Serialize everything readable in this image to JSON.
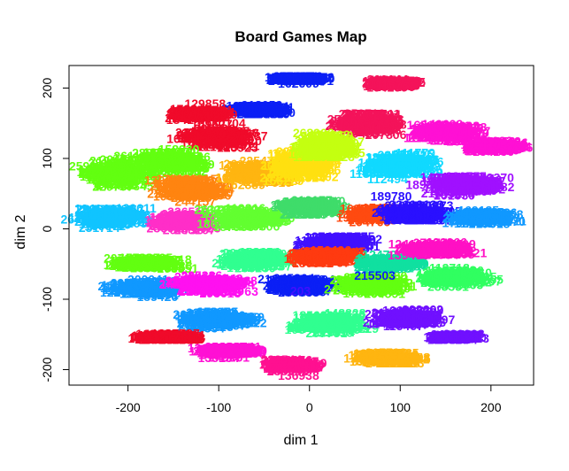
{
  "chart_data": {
    "type": "scatter",
    "title": "Board Games Map",
    "xlabel": "dim 1",
    "ylabel": "dim 2",
    "xlim": [
      -265,
      247
    ],
    "ylim": [
      -222,
      232
    ],
    "xticks": [
      -200,
      -100,
      0,
      100,
      200
    ],
    "yticks": [
      -200,
      -100,
      0,
      100,
      200
    ],
    "xtick_labels": [
      "-200",
      "-100",
      "0",
      "100",
      "200"
    ],
    "ytick_labels": [
      "-200",
      "-100",
      "0",
      "100",
      "200"
    ],
    "grid": false,
    "legend": "none",
    "point_style": "text labels (game ids) colored by cluster",
    "clusters": [
      {
        "color": "#0b1ff5",
        "center": [
          -10,
          212
        ],
        "spread": [
          22,
          5
        ]
      },
      {
        "color": "#0b1ff5",
        "center": [
          -55,
          168
        ],
        "spread": [
          22,
          8
        ]
      },
      {
        "color": "#f00a2a",
        "center": [
          -120,
          162
        ],
        "spread": [
          28,
          10
        ]
      },
      {
        "color": "#f00a2a",
        "center": [
          -100,
          130
        ],
        "spread": [
          40,
          22
        ]
      },
      {
        "color": "#f4135a",
        "center": [
          60,
          150
        ],
        "spread": [
          35,
          22
        ]
      },
      {
        "color": "#f4135a",
        "center": [
          90,
          205
        ],
        "spread": [
          20,
          8
        ]
      },
      {
        "color": "#ff10d4",
        "center": [
          150,
          135
        ],
        "spread": [
          40,
          18
        ]
      },
      {
        "color": "#ff10d4",
        "center": [
          205,
          115
        ],
        "spread": [
          25,
          10
        ]
      },
      {
        "color": "#62ff10",
        "center": [
          -210,
          80
        ],
        "spread": [
          38,
          25
        ]
      },
      {
        "color": "#62ff10",
        "center": [
          -150,
          95
        ],
        "spread": [
          35,
          20
        ]
      },
      {
        "color": "#ff8410",
        "center": [
          -130,
          55
        ],
        "spread": [
          35,
          20
        ]
      },
      {
        "color": "#ffb510",
        "center": [
          -55,
          80
        ],
        "spread": [
          40,
          25
        ]
      },
      {
        "color": "#ffe010",
        "center": [
          -10,
          90
        ],
        "spread": [
          30,
          30
        ]
      },
      {
        "color": "#c4ff10",
        "center": [
          20,
          115
        ],
        "spread": [
          30,
          22
        ]
      },
      {
        "color": "#10d9ff",
        "center": [
          100,
          90
        ],
        "spread": [
          45,
          25
        ]
      },
      {
        "color": "#a010ff",
        "center": [
          170,
          60
        ],
        "spread": [
          45,
          18
        ]
      },
      {
        "color": "#10c4ff",
        "center": [
          -220,
          15
        ],
        "spread": [
          35,
          20
        ]
      },
      {
        "color": "#ff2ec8",
        "center": [
          -140,
          10
        ],
        "spread": [
          30,
          18
        ]
      },
      {
        "color": "#62ff30",
        "center": [
          -70,
          15
        ],
        "spread": [
          40,
          20
        ]
      },
      {
        "color": "#3fdc6a",
        "center": [
          0,
          30
        ],
        "spread": [
          30,
          15
        ]
      },
      {
        "color": "#ff4a10",
        "center": [
          75,
          20
        ],
        "spread": [
          25,
          15
        ]
      },
      {
        "color": "#2a10ff",
        "center": [
          120,
          20
        ],
        "spread": [
          40,
          15
        ]
      },
      {
        "color": "#1098ff",
        "center": [
          190,
          15
        ],
        "spread": [
          35,
          15
        ]
      },
      {
        "color": "#4010ff",
        "center": [
          30,
          -20
        ],
        "spread": [
          35,
          15
        ]
      },
      {
        "color": "#62ff10",
        "center": [
          -180,
          -50
        ],
        "spread": [
          40,
          10
        ]
      },
      {
        "color": "#1098ff",
        "center": [
          -180,
          -85
        ],
        "spread": [
          45,
          15
        ]
      },
      {
        "color": "#ff10f0",
        "center": [
          -110,
          -80
        ],
        "spread": [
          35,
          18
        ]
      },
      {
        "color": "#30ff90",
        "center": [
          -60,
          -45
        ],
        "spread": [
          35,
          15
        ]
      },
      {
        "color": "#ff3a10",
        "center": [
          15,
          -40
        ],
        "spread": [
          30,
          12
        ]
      },
      {
        "color": "#0b1ff5",
        "center": [
          -10,
          -80
        ],
        "spread": [
          30,
          18
        ]
      },
      {
        "color": "#62ff10",
        "center": [
          70,
          -80
        ],
        "spread": [
          40,
          20
        ]
      },
      {
        "color": "#10e0a0",
        "center": [
          90,
          -50
        ],
        "spread": [
          30,
          12
        ]
      },
      {
        "color": "#30ff60",
        "center": [
          160,
          -70
        ],
        "spread": [
          40,
          18
        ]
      },
      {
        "color": "#ff10c4",
        "center": [
          140,
          -30
        ],
        "spread": [
          40,
          12
        ]
      },
      {
        "color": "#1098ff",
        "center": [
          -100,
          -130
        ],
        "spread": [
          40,
          15
        ]
      },
      {
        "color": "#30ff90",
        "center": [
          20,
          -135
        ],
        "spread": [
          45,
          18
        ]
      },
      {
        "color": "#7010ff",
        "center": [
          110,
          -130
        ],
        "spread": [
          40,
          15
        ]
      },
      {
        "color": "#7010ff",
        "center": [
          160,
          -155
        ],
        "spread": [
          20,
          5
        ]
      },
      {
        "color": "#f00a2a",
        "center": [
          -155,
          -155
        ],
        "spread": [
          25,
          6
        ]
      },
      {
        "color": "#ff10d4",
        "center": [
          -90,
          -175
        ],
        "spread": [
          35,
          12
        ]
      },
      {
        "color": "#ff1090",
        "center": [
          -20,
          -195
        ],
        "spread": [
          20,
          10
        ]
      },
      {
        "color": "#ffb510",
        "center": [
          90,
          -185
        ],
        "spread": [
          40,
          12
        ]
      }
    ],
    "annotations": [
      {
        "text": "162609",
        "x": -12,
        "y": 205,
        "color": "#0b1ff5"
      },
      {
        "text": "128968",
        "x": -132,
        "y": 160,
        "color": "#f00a2a"
      },
      {
        "text": "129858",
        "x": -115,
        "y": 176,
        "color": "#f00a2a"
      },
      {
        "text": "215503",
        "x": 72,
        "y": -68,
        "color": "#0b1ff5"
      },
      {
        "text": "136938",
        "x": -12,
        "y": -210,
        "color": "#ff1090"
      },
      {
        "text": "282485",
        "x": 98,
        "y": -178,
        "color": "#ffb510"
      },
      {
        "text": "203",
        "x": -10,
        "y": -90,
        "color": "#4010ff"
      },
      {
        "text": "2160",
        "x": 198,
        "y": 17,
        "color": "#1098ff"
      },
      {
        "text": "189780",
        "x": 90,
        "y": 45,
        "color": "#2a10ff"
      }
    ]
  }
}
